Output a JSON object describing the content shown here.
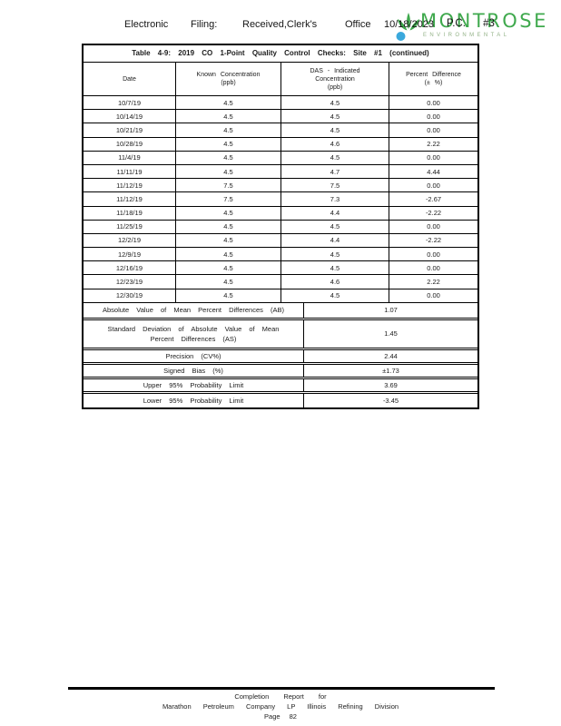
{
  "header": {
    "tokens": [
      "Electronic",
      "Filing:",
      "Received,Clerk's",
      "Office",
      "10/18/2023"
    ],
    "stamp": "P.C. #3"
  },
  "logo": {
    "name": "MONTROSE",
    "subtitle": "ENVIRONMENTAL",
    "icon": "leaf-and-dot",
    "colors": {
      "wordmark": "#3fa94d",
      "subtitle": "#93b287",
      "dot": "#3aa8dc",
      "leaf": "#3fa94d"
    }
  },
  "table": {
    "title": "Table 4-9: 2019 CO 1-Point Quality Control Checks: Site #1 (continued)",
    "columns": [
      {
        "lines": [
          "Date"
        ]
      },
      {
        "lines": [
          "Known Concentration",
          "(ppb)"
        ]
      },
      {
        "lines": [
          "DAS - Indicated",
          "Concentration",
          "(ppb)"
        ]
      },
      {
        "lines": [
          "Percent Difference",
          "(± %)"
        ]
      }
    ],
    "rows": [
      [
        "10/7/19",
        "4.5",
        "4.5",
        "0.00"
      ],
      [
        "10/14/19",
        "4.5",
        "4.5",
        "0.00"
      ],
      [
        "10/21/19",
        "4.5",
        "4.5",
        "0.00"
      ],
      [
        "10/28/19",
        "4.5",
        "4.6",
        "2.22"
      ],
      [
        "11/4/19",
        "4.5",
        "4.5",
        "0.00"
      ],
      [
        "11/11/19",
        "4.5",
        "4.7",
        "4.44"
      ],
      [
        "11/12/19",
        "7.5",
        "7.5",
        "0.00"
      ],
      [
        "11/12/19",
        "7.5",
        "7.3",
        "-2.67"
      ],
      [
        "11/18/19",
        "4.5",
        "4.4",
        "-2.22"
      ],
      [
        "11/25/19",
        "4.5",
        "4.5",
        "0.00"
      ],
      [
        "12/2/19",
        "4.5",
        "4.4",
        "-2.22"
      ],
      [
        "12/9/19",
        "4.5",
        "4.5",
        "0.00"
      ],
      [
        "12/16/19",
        "4.5",
        "4.5",
        "0.00"
      ],
      [
        "12/23/19",
        "4.5",
        "4.6",
        "2.22"
      ],
      [
        "12/30/19",
        "4.5",
        "4.5",
        "0.00"
      ]
    ],
    "summary": [
      {
        "label": "Absolute Value of Mean Percent Differences (AB)",
        "value": "1.07"
      },
      {
        "label": "Standard Deviation of Absolute Value of Mean Percent Differences (AS)",
        "value": "1.45"
      },
      {
        "label": "Precision (CV%)",
        "value": "2.44"
      },
      {
        "label": "Signed Bias (%)",
        "value": "±1.73"
      },
      {
        "label": "Upper 95% Probability Limit",
        "value": "3.69"
      },
      {
        "label": "Lower 95% Probability Limit",
        "value": "-3.45"
      }
    ]
  },
  "footer": {
    "line1": "Completion Report for",
    "line2": "Marathon Petroleum Company LP Illinois Refining Division",
    "line3": "Page 82"
  }
}
